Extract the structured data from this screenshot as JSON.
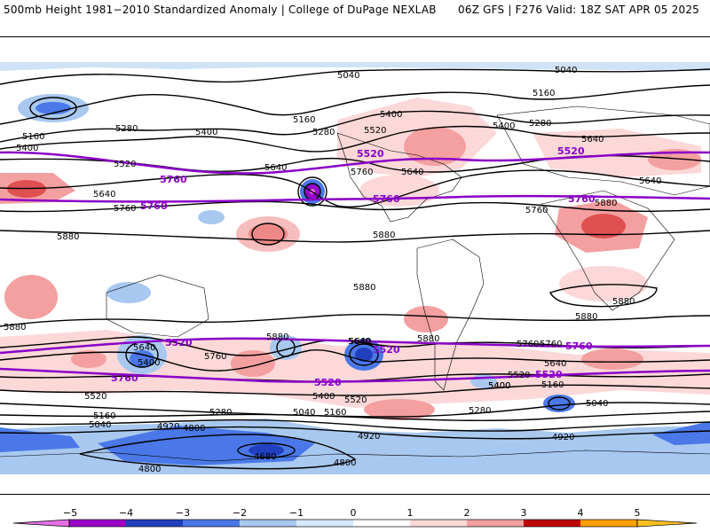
{
  "header": {
    "left": "500mb Height 1981−2010 Standardized Anomaly | College of DuPage NEXLAB",
    "right": "06Z GFS | F276 Valid: 18Z SAT APR 05 2025"
  },
  "colorbar": {
    "ticks": [
      "−5",
      "−4",
      "−3",
      "−2",
      "−1",
      "0",
      "1",
      "2",
      "3",
      "4",
      "5"
    ],
    "colors": [
      "#e66ee6",
      "#9a00c8",
      "#2040c0",
      "#4a78e8",
      "#a8c8f0",
      "#d8eaff",
      "#ffffff",
      "#fcd8d8",
      "#f4a0a0",
      "#e05050",
      "#c00000",
      "#ffa000"
    ]
  },
  "contour_labels": {
    "black": [
      "5040",
      "5160",
      "5400",
      "5280",
      "5520",
      "5400",
      "5160",
      "5280",
      "5640",
      "5040",
      "5160",
      "5400",
      "5280",
      "5520",
      "5640",
      "5400",
      "5760",
      "5640",
      "5880",
      "5760",
      "5640",
      "5640",
      "5880",
      "5880",
      "5880",
      "5760",
      "5880",
      "5880",
      "5880",
      "5880",
      "5640",
      "5400",
      "5760",
      "5640",
      "5880",
      "5760",
      "5640",
      "5400",
      "5520",
      "5160",
      "5040",
      "5280",
      "4920",
      "4800",
      "4920",
      "4800",
      "4680",
      "4800",
      "5040",
      "5160",
      "5400",
      "5520",
      "5760",
      "5640",
      "5400",
      "5520",
      "5160",
      "5040",
      "5280",
      "4920"
    ],
    "purple": [
      "5520",
      "5520",
      "5760",
      "5760",
      "5760",
      "5760",
      "5520",
      "5520",
      "5760",
      "5760",
      "5520",
      "5520"
    ]
  }
}
